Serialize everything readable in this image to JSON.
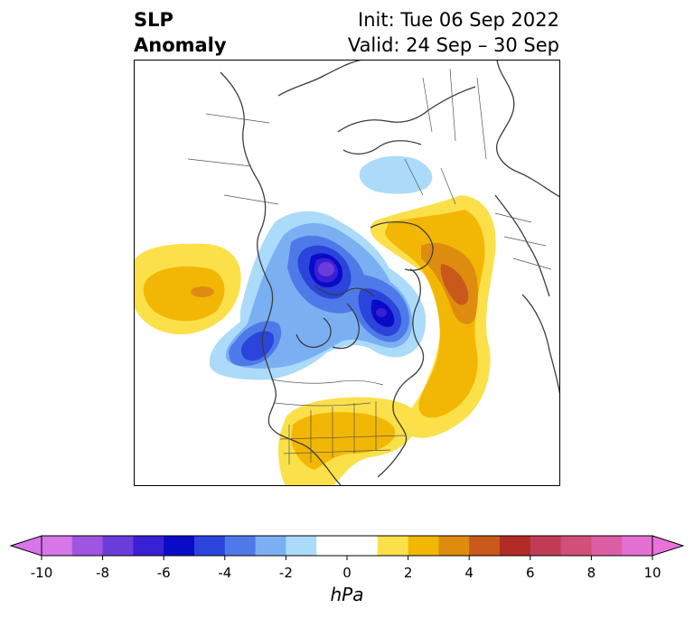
{
  "title": {
    "left_line1": "SLP",
    "left_line2": "Anomaly",
    "right_line1": "Init: Tue 06 Sep 2022",
    "right_line2": "Valid: 24 Sep – 30 Sep"
  },
  "colorbar": {
    "unit_label": "hPa",
    "tick_labels": [
      "-10",
      "-8",
      "-6",
      "-4",
      "-2",
      "0",
      "2",
      "4",
      "6",
      "8",
      "10"
    ],
    "bins": [
      {
        "lo": -10,
        "hi": -9,
        "color": "#d676e8"
      },
      {
        "lo": -9,
        "hi": -8,
        "color": "#9f55e0"
      },
      {
        "lo": -8,
        "hi": -7,
        "color": "#6a3ddb"
      },
      {
        "lo": -7,
        "hi": -6,
        "color": "#3a20d4"
      },
      {
        "lo": -6,
        "hi": -5,
        "color": "#0a0ac9"
      },
      {
        "lo": -5,
        "hi": -4,
        "color": "#2a44dc"
      },
      {
        "lo": -4,
        "hi": -3,
        "color": "#4e7ae9"
      },
      {
        "lo": -3,
        "hi": -2,
        "color": "#7ab0f1"
      },
      {
        "lo": -2,
        "hi": -1,
        "color": "#acdbf9"
      },
      {
        "lo": -1,
        "hi": 1,
        "color": "#ffffff"
      },
      {
        "lo": 1,
        "hi": 2,
        "color": "#fbe04a"
      },
      {
        "lo": 2,
        "hi": 3,
        "color": "#f2b705"
      },
      {
        "lo": 3,
        "hi": 4,
        "color": "#de8c10"
      },
      {
        "lo": 4,
        "hi": 5,
        "color": "#c8591a"
      },
      {
        "lo": 5,
        "hi": 6,
        "color": "#b32b27"
      },
      {
        "lo": 6,
        "hi": 7,
        "color": "#c23b55"
      },
      {
        "lo": 7,
        "hi": 8,
        "color": "#d14f78"
      },
      {
        "lo": 8,
        "hi": 9,
        "color": "#db5ea5"
      },
      {
        "lo": 9,
        "hi": 10,
        "color": "#e46fd2"
      }
    ],
    "under_color": "#d676e8",
    "over_color": "#e971dc"
  },
  "map": {
    "coastline_color": "#3d3d3d",
    "border_color": "#555555"
  }
}
